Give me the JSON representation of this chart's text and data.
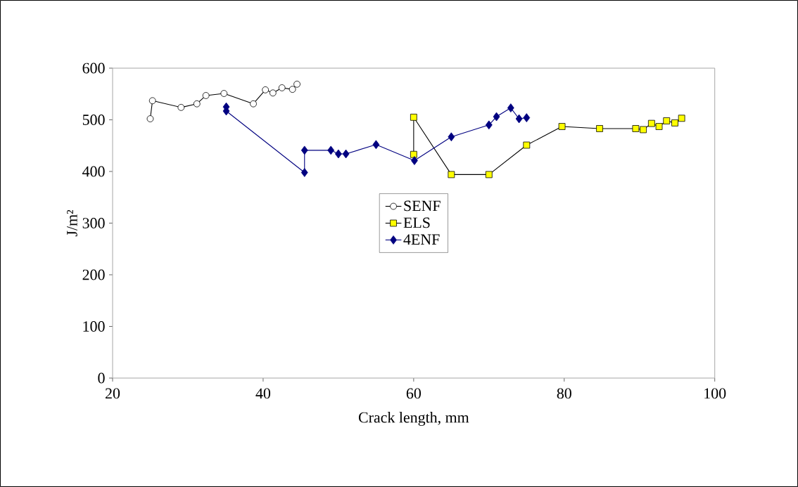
{
  "chart_data": {
    "type": "line",
    "xlabel": "Crack length, mm",
    "ylabel": "J/m²",
    "xlim": [
      20,
      100
    ],
    "xticks": [
      20,
      40,
      60,
      80,
      100
    ],
    "ylim": [
      0,
      600
    ],
    "yticks": [
      0,
      100,
      200,
      300,
      400,
      500,
      600
    ],
    "grid": false,
    "legend": "center",
    "series": [
      {
        "name": "SENF",
        "color": "#ffffff",
        "marker": "circle",
        "x": [
          25.0,
          25.3,
          29.1,
          31.2,
          32.4,
          34.8,
          38.7,
          40.3,
          41.3,
          42.5,
          43.9,
          44.5
        ],
        "values": [
          502,
          537,
          524,
          531,
          547,
          551,
          531,
          558,
          552,
          562,
          559,
          569
        ]
      },
      {
        "name": "ELS",
        "color": "#ffff00",
        "marker": "square",
        "x": [
          60.0,
          60.0,
          65.0,
          70.0,
          75.0,
          79.7,
          84.7,
          89.5,
          90.5,
          91.6,
          92.6,
          93.6,
          94.7,
          95.6
        ],
        "values": [
          433,
          505,
          394,
          394,
          451,
          487,
          483,
          483,
          481,
          493,
          487,
          498,
          494,
          503
        ]
      },
      {
        "name": "4ENF",
        "color": "#000080",
        "marker": "diamond",
        "x": [
          35.1,
          35.1,
          45.5,
          45.5,
          49.0,
          50.0,
          51.0,
          55.0,
          60.1,
          65.0,
          70.0,
          71.0,
          72.9,
          74.0,
          75.0
        ],
        "values": [
          525,
          517,
          398,
          441,
          441,
          434,
          434,
          452,
          421,
          467,
          490,
          506,
          523,
          502,
          504
        ]
      }
    ]
  }
}
